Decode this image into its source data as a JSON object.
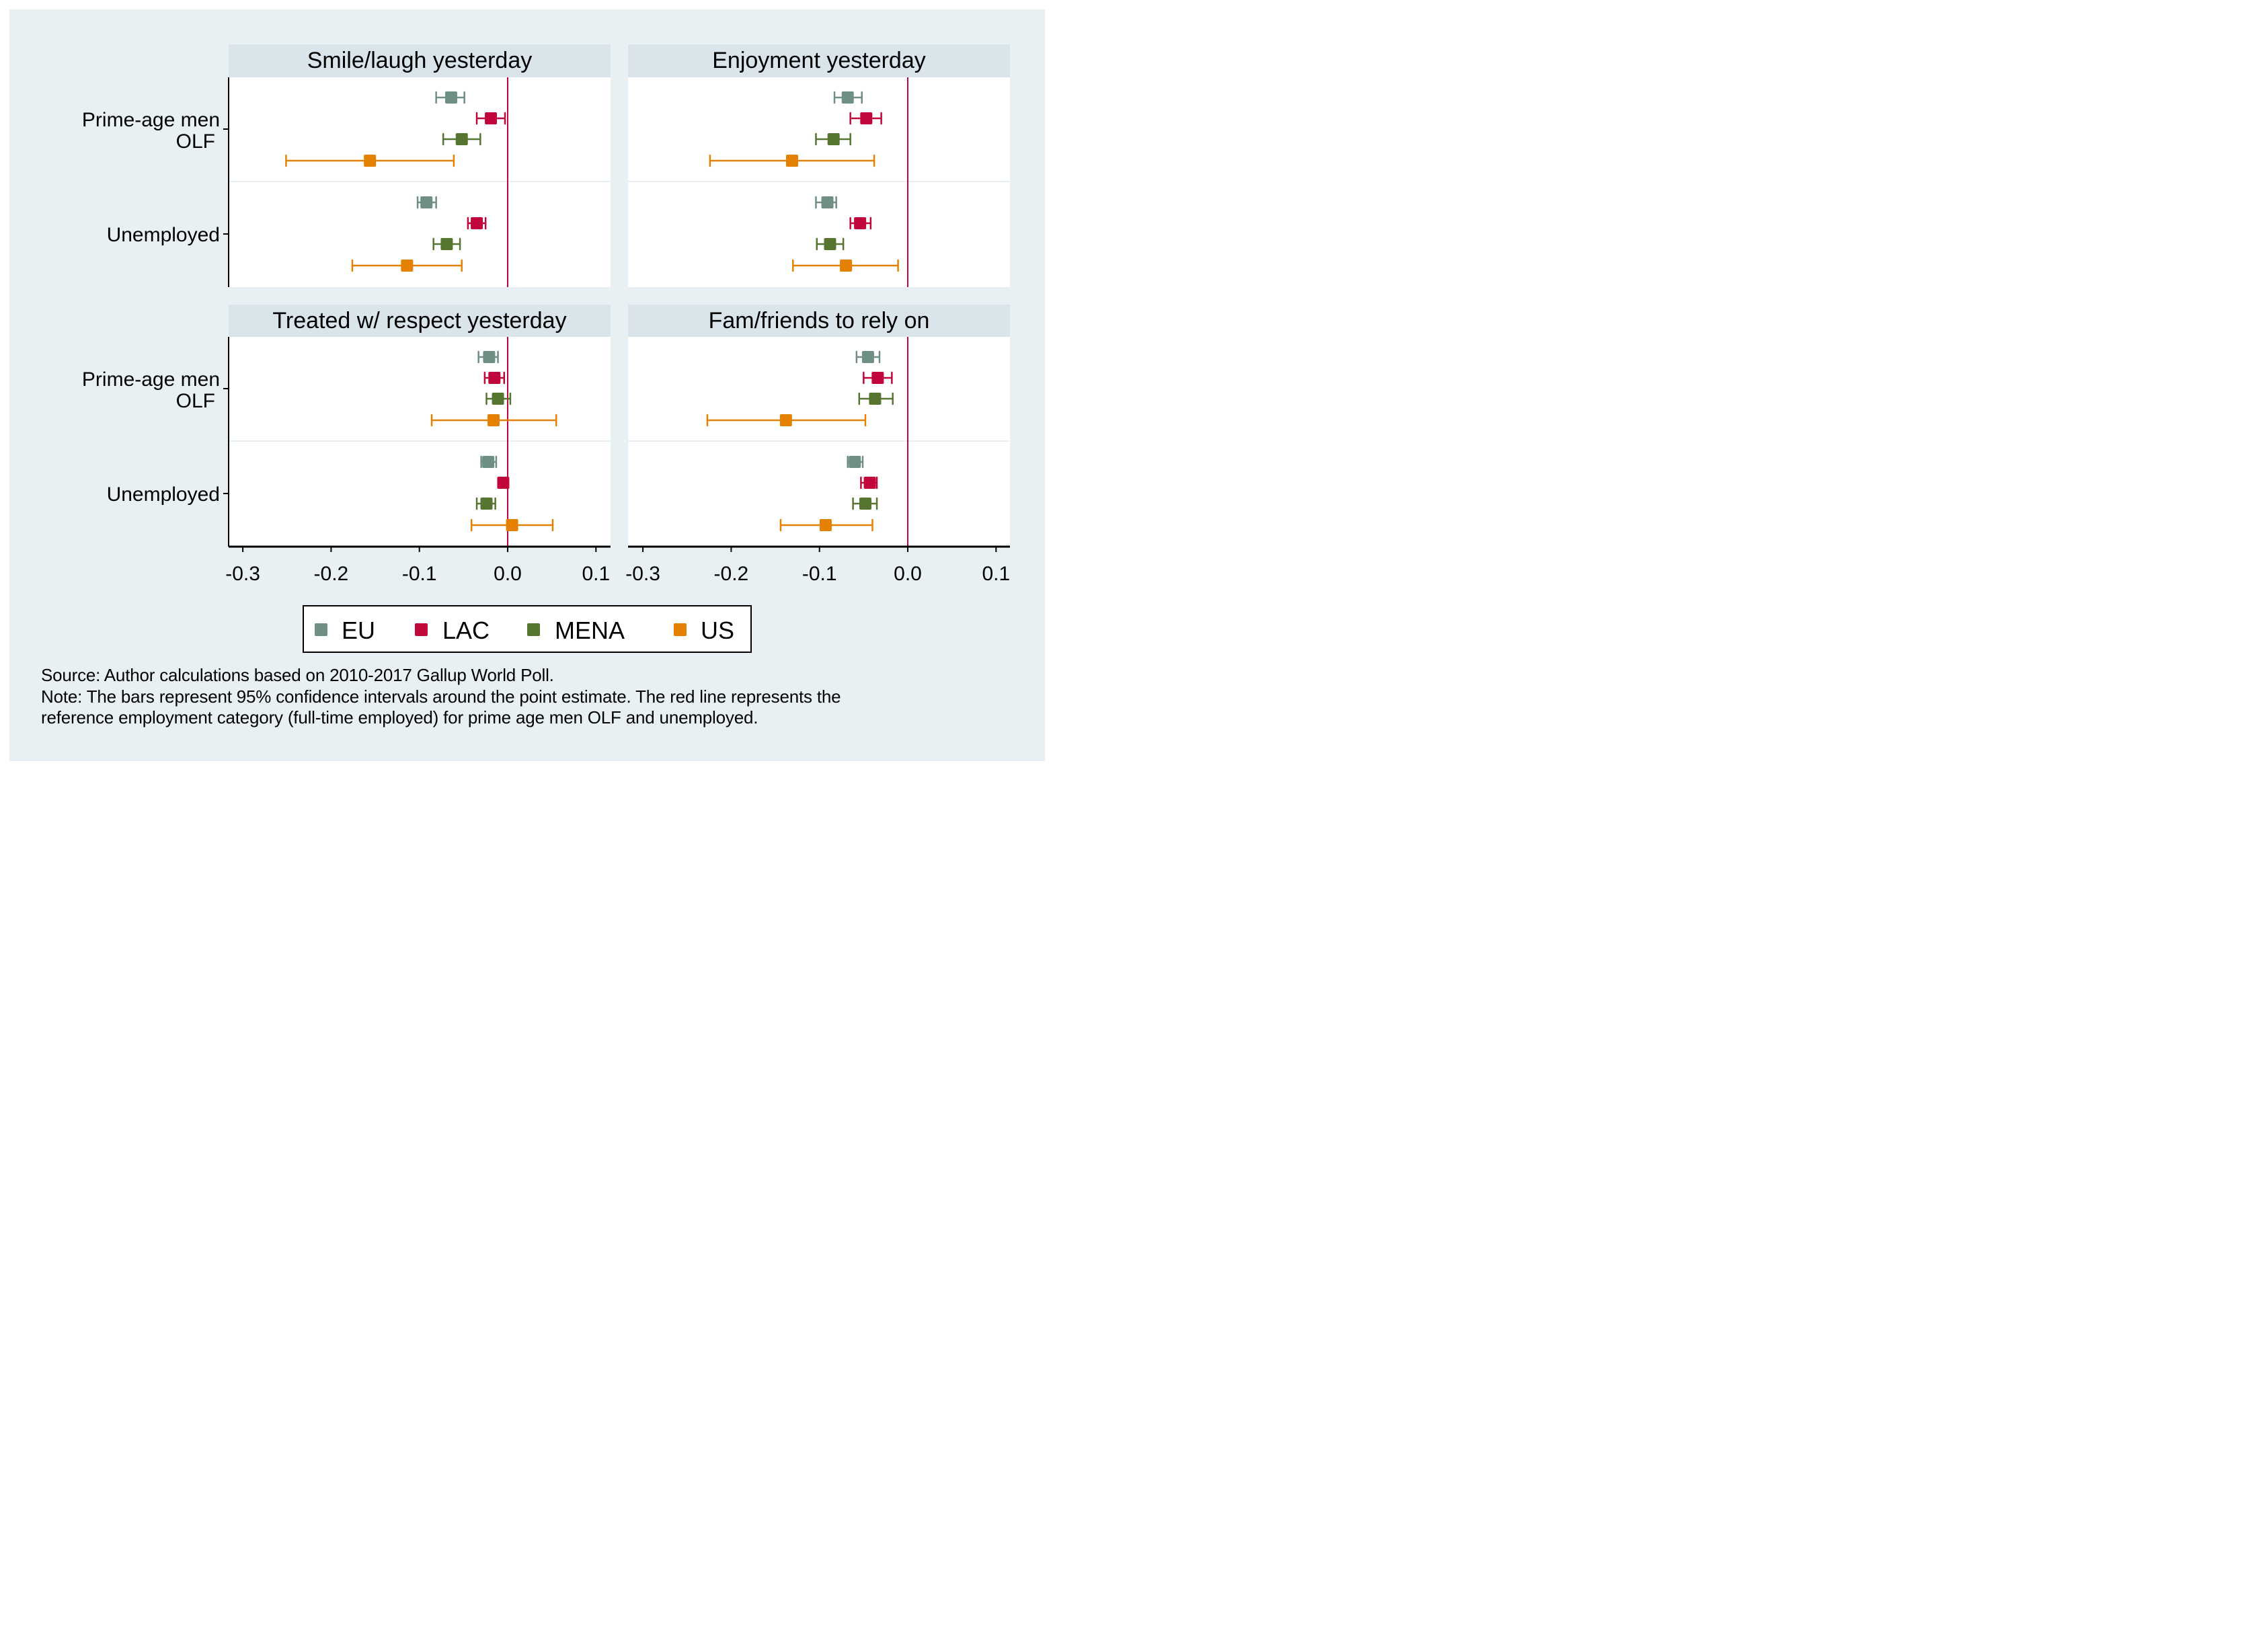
{
  "chart_data": {
    "type": "scatter",
    "subtype": "coefficient-plot-with-confidence-intervals",
    "x_ticks": [
      -0.3,
      -0.2,
      -0.1,
      0.0,
      0.1
    ],
    "x_tick_labels": [
      "-0.3",
      "-0.2",
      "-0.1",
      "0.0",
      "0.1"
    ],
    "xlim": [
      -0.316,
      0.117
    ],
    "reference_line": 0.0,
    "reference_line_color": "#c0063a",
    "groups": [
      "Prime-age men OLF",
      "Unemployed"
    ],
    "group_labels": [
      [
        "Prime-age men",
        "OLF"
      ],
      [
        "Unemployed"
      ]
    ],
    "series": [
      {
        "name": "EU",
        "color": "#6e8f82"
      },
      {
        "name": "LAC",
        "color": "#c0063a"
      },
      {
        "name": "MENA",
        "color": "#557530"
      },
      {
        "name": "US",
        "color": "#e48100"
      }
    ],
    "panels": [
      {
        "title": "Smile/laugh yesterday",
        "data": {
          "Prime-age men OLF": {
            "EU": {
              "est": -0.064,
              "lo": -0.081,
              "hi": -0.049
            },
            "LAC": {
              "est": -0.019,
              "lo": -0.035,
              "hi": -0.003
            },
            "MENA": {
              "est": -0.052,
              "lo": -0.073,
              "hi": -0.031
            },
            "US": {
              "est": -0.156,
              "lo": -0.251,
              "hi": -0.061
            }
          },
          "Unemployed": {
            "EU": {
              "est": -0.092,
              "lo": -0.102,
              "hi": -0.081
            },
            "LAC": {
              "est": -0.035,
              "lo": -0.045,
              "hi": -0.025
            },
            "MENA": {
              "est": -0.069,
              "lo": -0.084,
              "hi": -0.054
            },
            "US": {
              "est": -0.114,
              "lo": -0.176,
              "hi": -0.052
            }
          }
        }
      },
      {
        "title": "Enjoyment yesterday",
        "data": {
          "Prime-age men OLF": {
            "EU": {
              "est": -0.068,
              "lo": -0.083,
              "hi": -0.052
            },
            "LAC": {
              "est": -0.047,
              "lo": -0.065,
              "hi": -0.03
            },
            "MENA": {
              "est": -0.084,
              "lo": -0.104,
              "hi": -0.065
            },
            "US": {
              "est": -0.131,
              "lo": -0.224,
              "hi": -0.038
            }
          },
          "Unemployed": {
            "EU": {
              "est": -0.091,
              "lo": -0.104,
              "hi": -0.081
            },
            "LAC": {
              "est": -0.054,
              "lo": -0.065,
              "hi": -0.042
            },
            "MENA": {
              "est": -0.088,
              "lo": -0.103,
              "hi": -0.073
            },
            "US": {
              "est": -0.07,
              "lo": -0.13,
              "hi": -0.011
            }
          }
        }
      },
      {
        "title": "Treated w/ respect yesterday",
        "data": {
          "Prime-age men OLF": {
            "EU": {
              "est": -0.021,
              "lo": -0.033,
              "hi": -0.011
            },
            "LAC": {
              "est": -0.015,
              "lo": -0.026,
              "hi": -0.004
            },
            "MENA": {
              "est": -0.011,
              "lo": -0.024,
              "hi": 0.003
            },
            "US": {
              "est": -0.016,
              "lo": -0.086,
              "hi": 0.055
            }
          },
          "Unemployed": {
            "EU": {
              "est": -0.022,
              "lo": -0.03,
              "hi": -0.013
            },
            "LAC": {
              "est": -0.005,
              "lo": -0.008,
              "hi": -0.002
            },
            "MENA": {
              "est": -0.024,
              "lo": -0.035,
              "hi": -0.014
            },
            "US": {
              "est": 0.005,
              "lo": -0.041,
              "hi": 0.051
            }
          }
        }
      },
      {
        "title": "Fam/friends to rely on",
        "data": {
          "Prime-age men OLF": {
            "EU": {
              "est": -0.045,
              "lo": -0.058,
              "hi": -0.032
            },
            "LAC": {
              "est": -0.034,
              "lo": -0.05,
              "hi": -0.018
            },
            "MENA": {
              "est": -0.037,
              "lo": -0.055,
              "hi": -0.017
            },
            "US": {
              "est": -0.138,
              "lo": -0.227,
              "hi": -0.048
            }
          },
          "Unemployed": {
            "EU": {
              "est": -0.06,
              "lo": -0.068,
              "hi": -0.051
            },
            "LAC": {
              "est": -0.043,
              "lo": -0.053,
              "hi": -0.035
            },
            "MENA": {
              "est": -0.048,
              "lo": -0.062,
              "hi": -0.035
            },
            "US": {
              "est": -0.093,
              "lo": -0.144,
              "hi": -0.04
            }
          }
        }
      }
    ],
    "legend": {
      "entries": [
        "EU",
        "LAC",
        "MENA",
        "US"
      ],
      "placement": "bottom-center"
    },
    "grid": false
  },
  "notes": {
    "source": "Source: Author calculations based on 2010-2017 Gallup World Poll.",
    "note_line1": "Note: The bars represent 95% confidence intervals around the point estimate. The red line represents the",
    "note_line2": "reference employment category (full-time employed) for prime age men OLF and unemployed."
  }
}
